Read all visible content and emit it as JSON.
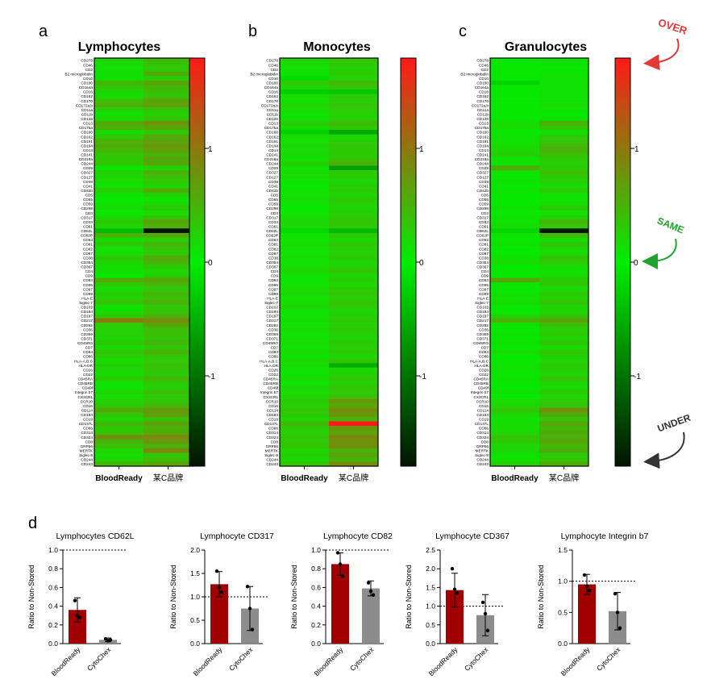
{
  "panel_letters": [
    "a",
    "b",
    "c",
    "d"
  ],
  "colors": {
    "high": "#ff1a1a",
    "mid": "#00ee00",
    "low": "#001400",
    "blood_ready_bar": "#a00000",
    "cytochex_bar": "#8c8c8c",
    "over": "#e53935",
    "same": "#1fa32c",
    "under": "#333333"
  },
  "heatmap_markers": [
    "CD278",
    "CD46",
    "CD2",
    "B2 microglobulin",
    "CD10",
    "CD100",
    "CD164a",
    "CD16",
    "CD162",
    "CD170",
    "CD172a,b",
    "CD11a",
    "CD11b",
    "CD126",
    "CD13",
    "CD175a",
    "CD160",
    "CD162",
    "CD191",
    "CD194",
    "CD14",
    "CD141",
    "CD218a",
    "CD244",
    "CD29",
    "CD327",
    "CD127",
    "CD39",
    "CD41",
    "CD42b",
    "CD5",
    "CD55",
    "CD59",
    "CD298",
    "CD3",
    "CD317",
    "CD33",
    "CD61",
    "CD62L",
    "CD62P",
    "CD63",
    "CD81",
    "CD82",
    "CD87",
    "CD38",
    "CD354",
    "CD367",
    "CD4",
    "CD9",
    "CD93",
    "CD95",
    "CD97",
    "CD99",
    "HLA-E",
    "Siglec-7",
    "CD102",
    "CD184",
    "CD197",
    "CD217",
    "CD282",
    "CD36",
    "CD369",
    "CD371",
    "CD45RO",
    "CD7",
    "CD84",
    "CD86",
    "HLA-A,B,C",
    "HLA-DR",
    "CD26",
    "CD22",
    "CD45RA",
    "CD45RB",
    "CD49f",
    "Integrin b7",
    "CX3CR1",
    "CCR10",
    "CD16",
    "CD114",
    "CD183",
    "CD19",
    "CD137L",
    "CD66",
    "CD314",
    "CD324",
    "CD8",
    "GRP56",
    "MERTK",
    "Siglec-8",
    "CD244",
    "CD243"
  ],
  "colorbar_ticks": [
    "1",
    "0",
    "-1"
  ],
  "annotations": {
    "over": "OVER",
    "same": "SAME",
    "under": "UNDER"
  },
  "chart_data": [
    {
      "type": "heatmap",
      "title": "Lymphocytes",
      "columns": [
        "BloodReady",
        "某C品牌"
      ],
      "color_range": [
        -1.75,
        1.75
      ],
      "values": {
        "BloodReady": [
          0.2,
          0.15,
          0.1,
          0.12,
          0.1,
          0.45,
          0.35,
          0.2,
          0.15,
          0.4,
          0.5,
          0.25,
          0.1,
          0.2,
          0.55,
          0.5,
          0.15,
          0.3,
          0.5,
          0.55,
          0.45,
          0.35,
          0.3,
          0.35,
          0.05,
          0.25,
          0.2,
          0.15,
          0.1,
          0.25,
          0.1,
          0.05,
          0.1,
          0.15,
          0.05,
          0.2,
          0.3,
          0.2,
          -0.4,
          0.5,
          0.15,
          0.3,
          0.1,
          0.15,
          0.3,
          0.2,
          0.15,
          0.1,
          0.05,
          0.55,
          0.3,
          0.15,
          0.25,
          0.25,
          0.35,
          0.1,
          0.15,
          0.3,
          0.95,
          0.3,
          0.25,
          0.25,
          0.2,
          0.3,
          0.15,
          0.35,
          0.25,
          0.15,
          0.25,
          0.2,
          0.15,
          0.3,
          0.1,
          0.1,
          0.2,
          0.15,
          0.25,
          0.3,
          0.55,
          0.35,
          0.2,
          0.45,
          0.3,
          0.35,
          0.8,
          0.45,
          0.4,
          0.2,
          0.15,
          0.2,
          0.45
        ],
        "某C品牌": [
          0.45,
          0.35,
          0.3,
          0.55,
          0.25,
          0.6,
          0.45,
          0.4,
          0.35,
          0.6,
          0.65,
          0.35,
          0.25,
          0.35,
          0.75,
          0.6,
          0.3,
          0.55,
          0.6,
          0.7,
          0.65,
          0.5,
          0.55,
          0.6,
          0.2,
          0.5,
          0.4,
          0.3,
          0.2,
          0.55,
          0.25,
          0.1,
          0.2,
          0.3,
          0.15,
          0.35,
          0.6,
          0.5,
          -1.75,
          0.6,
          0.25,
          0.45,
          0.35,
          0.3,
          0.55,
          0.5,
          0.3,
          0.2,
          0.25,
          0.6,
          0.45,
          0.3,
          0.45,
          0.4,
          0.5,
          0.3,
          0.35,
          0.5,
          0.8,
          0.6,
          0.4,
          0.4,
          0.35,
          0.45,
          0.3,
          0.5,
          0.35,
          0.3,
          0.4,
          0.35,
          0.3,
          0.45,
          0.3,
          0.25,
          0.4,
          0.3,
          0.35,
          0.45,
          0.7,
          0.65,
          0.4,
          0.6,
          0.5,
          0.55,
          0.85,
          0.7,
          0.5,
          0.85,
          0.35,
          0.4,
          0.6
        ]
      }
    },
    {
      "type": "heatmap",
      "title": "Monocytes",
      "columns": [
        "BloodReady",
        "某C品牌"
      ],
      "color_range": [
        -1.75,
        1.75
      ],
      "values": {
        "BloodReady": [
          0.2,
          0.15,
          0.1,
          0.1,
          -0.15,
          0.3,
          0.2,
          -0.25,
          0.15,
          0.1,
          0.2,
          0.15,
          0.1,
          0.1,
          0.3,
          0.15,
          -0.25,
          0.15,
          0.1,
          0.2,
          0.15,
          0.2,
          0.1,
          0.25,
          0.1,
          0.15,
          0.15,
          0.1,
          0.05,
          0.1,
          0.1,
          0.15,
          0.1,
          0.05,
          0.1,
          0.15,
          0.2,
          0.2,
          -0.15,
          0.1,
          0.1,
          0.15,
          0.1,
          0.1,
          0.15,
          0.1,
          0.15,
          0.2,
          0.1,
          0.1,
          0.1,
          0.15,
          0.2,
          0.1,
          0.15,
          0.2,
          0.1,
          0.1,
          0.15,
          0.1,
          0.15,
          0.1,
          0.1,
          0.15,
          0.1,
          0.15,
          0.1,
          0.2,
          0.15,
          0.1,
          0.1,
          0.15,
          0.1,
          0.2,
          0.15,
          0.2,
          0.3,
          0.25,
          0.35,
          0.3,
          0.2,
          0.45,
          0.3,
          0.25,
          0.35,
          0.3,
          0.35,
          0.2,
          0.25,
          0.2,
          0.35
        ],
        "某C品牌": [
          0.35,
          0.3,
          0.25,
          0.3,
          0.2,
          0.45,
          0.35,
          -0.3,
          0.3,
          0.25,
          0.35,
          0.3,
          0.25,
          0.25,
          0.45,
          0.3,
          -0.55,
          0.2,
          0.25,
          0.35,
          0.3,
          0.3,
          0.35,
          0.5,
          -0.6,
          0.3,
          0.25,
          0.2,
          0.25,
          0.3,
          0.2,
          0.3,
          0.25,
          0.2,
          0.25,
          0.3,
          0.35,
          0.3,
          -0.4,
          0.3,
          0.2,
          0.3,
          0.25,
          0.25,
          0.3,
          0.2,
          0.25,
          0.35,
          0.2,
          0.25,
          0.2,
          0.3,
          0.35,
          0.25,
          0.35,
          0.3,
          0.2,
          0.25,
          0.3,
          0.25,
          0.3,
          0.25,
          0.2,
          0.3,
          0.25,
          0.3,
          0.2,
          0.35,
          -0.5,
          0.2,
          0.25,
          0.3,
          0.25,
          0.35,
          0.3,
          0.4,
          0.7,
          0.6,
          0.8,
          0.7,
          0.5,
          1.75,
          0.75,
          0.6,
          0.85,
          0.75,
          0.8,
          0.5,
          0.6,
          0.45,
          0.8
        ]
      }
    },
    {
      "type": "heatmap",
      "title": "Granulocytes",
      "columns": [
        "BloodReady",
        "某C品牌"
      ],
      "color_range": [
        -1.75,
        1.75
      ],
      "values": {
        "BloodReady": [
          0.05,
          0.05,
          0.05,
          0.05,
          0.05,
          -0.2,
          0.05,
          0.05,
          0.05,
          0.05,
          0.05,
          0.05,
          0.05,
          0.05,
          0.15,
          0.15,
          0.05,
          0.1,
          0.1,
          0.15,
          0.2,
          0.25,
          0.1,
          0.1,
          0.55,
          0.1,
          0.05,
          0.1,
          0.05,
          0.1,
          0.05,
          0.05,
          0.05,
          0.1,
          0.05,
          0.1,
          0.1,
          0.15,
          -0.2,
          0.1,
          0.05,
          0.1,
          0.05,
          0.05,
          0.1,
          0.15,
          0.05,
          0.05,
          0.05,
          0.6,
          0.1,
          0.05,
          0.1,
          0.1,
          0.15,
          0.05,
          0.05,
          0.2,
          0.5,
          0.1,
          0.05,
          0.1,
          0.05,
          0.1,
          0.05,
          0.15,
          0.05,
          0.05,
          0.1,
          0.1,
          0.05,
          0.1,
          0.05,
          0.05,
          0.1,
          0.05,
          0.15,
          0.2,
          0.35,
          0.2,
          0.1,
          0.15,
          0.15,
          0.2,
          0.35,
          0.3,
          0.2,
          0.2,
          0.1,
          0.1,
          0.25
        ],
        "某C品牌": [
          0.1,
          0.1,
          0.05,
          0.1,
          0.1,
          0.1,
          0.1,
          0.1,
          0.1,
          0.1,
          0.15,
          0.1,
          0.05,
          0.1,
          0.5,
          0.35,
          0.1,
          0.3,
          0.35,
          0.45,
          0.5,
          0.4,
          0.3,
          0.25,
          0.3,
          0.4,
          0.3,
          0.25,
          0.15,
          0.3,
          0.1,
          0.1,
          0.15,
          0.3,
          0.1,
          0.25,
          0.45,
          0.35,
          -1.75,
          0.45,
          0.15,
          0.3,
          0.2,
          0.15,
          0.35,
          0.3,
          0.15,
          0.1,
          0.15,
          0.3,
          0.3,
          0.15,
          0.3,
          0.25,
          0.35,
          0.2,
          0.2,
          0.35,
          0.6,
          0.4,
          0.25,
          0.3,
          0.2,
          0.35,
          0.15,
          0.35,
          0.25,
          0.2,
          0.3,
          0.25,
          0.2,
          0.35,
          0.2,
          0.15,
          0.3,
          0.2,
          0.3,
          0.35,
          0.8,
          0.55,
          0.35,
          0.6,
          0.45,
          0.55,
          0.5,
          0.6,
          0.45,
          0.55,
          0.3,
          0.35,
          0.55
        ]
      }
    },
    {
      "type": "bar",
      "title": "Lymphocytes CD62L",
      "categories": [
        "BloodReady",
        "CytoChex"
      ],
      "values": [
        0.36,
        0.04
      ],
      "errors": [
        0.13,
        0.02
      ],
      "points": [
        [
          0.46,
          0.3,
          0.28
        ],
        [
          0.05,
          0.03,
          0.04
        ]
      ],
      "ylabel": "Ratio to Non-Stored",
      "ylim": [
        0,
        1.0
      ],
      "yticks": [
        "0.0",
        "0.2",
        "0.4",
        "0.6",
        "0.8",
        "1.0"
      ],
      "reference": 1.0
    },
    {
      "type": "bar",
      "title": "Lymphocyte CD317",
      "categories": [
        "BloodReady",
        "CytoChex"
      ],
      "values": [
        1.27,
        0.75
      ],
      "errors": [
        0.27,
        0.47
      ],
      "points": [
        [
          1.55,
          1.2,
          1.1
        ],
        [
          1.22,
          0.75,
          0.3
        ]
      ],
      "ylabel": "Ratio to Non-Stored",
      "ylim": [
        0,
        2.0
      ],
      "yticks": [
        "0.0",
        "0.5",
        "1.0",
        "1.5",
        "2.0"
      ],
      "reference": 1.0
    },
    {
      "type": "bar",
      "title": "Lymphocyte CD82",
      "categories": [
        "BloodReady",
        "CytoChex"
      ],
      "values": [
        0.85,
        0.59
      ],
      "errors": [
        0.12,
        0.08
      ],
      "points": [
        [
          0.97,
          0.85,
          0.72
        ],
        [
          0.65,
          0.56,
          0.52
        ]
      ],
      "ylabel": "Ratio to Non-Stored",
      "ylim": [
        0,
        1.0
      ],
      "yticks": [
        "0.0",
        "0.2",
        "0.4",
        "0.6",
        "0.8",
        "1.0"
      ],
      "reference": 1.0
    },
    {
      "type": "bar",
      "title": "Lymphocyte CD367",
      "categories": [
        "BloodReady",
        "CytoChex"
      ],
      "values": [
        1.43,
        0.76
      ],
      "errors": [
        0.45,
        0.55
      ],
      "points": [
        [
          2.0,
          1.45,
          1.35
        ],
        [
          1.1,
          0.8,
          0.35
        ]
      ],
      "ylabel": "Ratio to Non-Stored",
      "ylim": [
        0,
        2.5
      ],
      "yticks": [
        "0.0",
        "0.5",
        "1.0",
        "1.5",
        "2.0",
        "2.5"
      ],
      "reference": 1.0
    },
    {
      "type": "bar",
      "title": "Lymphocyte Integrin b7",
      "categories": [
        "BloodReady",
        "CytoChex"
      ],
      "values": [
        0.95,
        0.52
      ],
      "errors": [
        0.16,
        0.3
      ],
      "points": [
        [
          1.1,
          0.92,
          0.85
        ],
        [
          0.8,
          0.5,
          0.25
        ]
      ],
      "ylabel": "Ratio to Non-Stored",
      "ylim": [
        0,
        1.5
      ],
      "yticks": [
        "0.0",
        "0.5",
        "1.0",
        "1.5"
      ],
      "reference": 1.0
    }
  ]
}
